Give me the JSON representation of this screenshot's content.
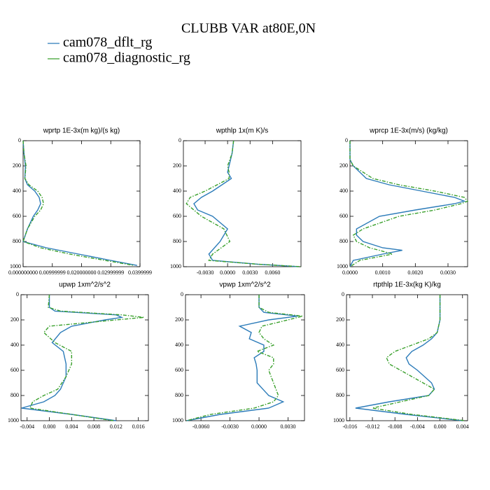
{
  "title": "CLUBB VAR at80E,0N",
  "legend": [
    {
      "name": "cam078_dflt_rg",
      "color": "#2b7bb9"
    },
    {
      "name": "cam078_diagnostic_rg",
      "color": "#3aa02c"
    }
  ],
  "chart_data": [
    {
      "type": "line",
      "title": "wprtp  1E-3x(m kg)/(s kg)",
      "y": [
        0,
        100,
        200,
        300,
        350,
        400,
        450,
        500,
        550,
        600,
        700,
        800,
        850,
        900,
        950,
        990
      ],
      "series": [
        {
          "color": "#2b7bb9",
          "dash": "solid",
          "values": [
            0,
            0.0003,
            0.0008,
            0.0006,
            0.0015,
            0.004,
            0.0055,
            0.006,
            0.005,
            0.0035,
            0.0015,
            0,
            0.008,
            0.019,
            0.03,
            0.039
          ]
        },
        {
          "color": "#3aa02c",
          "dash": "dash-dot",
          "values": [
            0,
            0.0003,
            0.001,
            0.0006,
            0.002,
            0.005,
            0.0065,
            0.007,
            0.006,
            0.004,
            0.0015,
            0,
            0.006,
            0.016,
            0.028,
            0.038
          ]
        }
      ],
      "xlim": [
        0,
        0.04
      ],
      "xticks": [
        {
          "value": 0,
          "label": "0.000000000"
        },
        {
          "value": 0.01,
          "label": "0.00999999"
        },
        {
          "value": 0.02,
          "label": "0.020000000"
        },
        {
          "value": 0.03,
          "label": "0.02999999"
        },
        {
          "value": 0.04,
          "label": "0.0399999"
        }
      ],
      "ylim": [
        0,
        1000
      ],
      "yticks": [
        0,
        200,
        400,
        600,
        800,
        1000
      ],
      "y_inverted": true
    },
    {
      "type": "line",
      "title": "wpthlp  1x(m K)/s",
      "y": [
        0,
        100,
        200,
        250,
        300,
        400,
        450,
        500,
        550,
        600,
        700,
        800,
        900,
        950,
        980,
        1000
      ],
      "series": [
        {
          "color": "#2b7bb9",
          "dash": "solid",
          "values": [
            0.0008,
            0.0006,
            0.0002,
            0.0,
            0.0005,
            -0.002,
            -0.0035,
            -0.0045,
            -0.004,
            -0.002,
            0.0,
            -0.001,
            -0.0025,
            -0.002,
            0.004,
            0.0095
          ]
        },
        {
          "color": "#3aa02c",
          "dash": "dash-dot",
          "values": [
            0.0008,
            0.0006,
            0.0,
            0.0002,
            0.0002,
            -0.003,
            -0.005,
            -0.0055,
            -0.0045,
            -0.0035,
            -0.0005,
            0.0003,
            -0.002,
            -0.0025,
            0.004,
            0.0098
          ]
        }
      ],
      "xlim": [
        -0.0059,
        0.0098
      ],
      "xticks": [
        {
          "value": -0.003,
          "label": "-0.0030"
        },
        {
          "value": 0,
          "label": "0.0000"
        },
        {
          "value": 0.003,
          "label": "0.0030"
        },
        {
          "value": 0.006,
          "label": "0.0060"
        }
      ],
      "ylim": [
        0,
        1000
      ],
      "yticks": [
        0,
        200,
        400,
        600,
        800,
        1000
      ],
      "y_inverted": true
    },
    {
      "type": "line",
      "title": "wprcp  1E-3x(m/s) (kg/kg)",
      "y": [
        0,
        150,
        200,
        300,
        350,
        400,
        450,
        480,
        500,
        550,
        600,
        700,
        750,
        800,
        850,
        870,
        900,
        950,
        1000
      ],
      "series": [
        {
          "color": "#2b7bb9",
          "dash": "solid",
          "values": [
            0,
            0,
            0.0001,
            0.0005,
            0.0012,
            0.0022,
            0.0032,
            0.0035,
            0.0032,
            0.002,
            0.0009,
            0.0002,
            0.0002,
            0.0004,
            0.001,
            0.0016,
            0.001,
            0.0001,
            0
          ]
        },
        {
          "color": "#3aa02c",
          "dash": "dash-dot",
          "values": [
            0,
            0,
            0.0001,
            0.0007,
            0.0015,
            0.0026,
            0.0035,
            0.0036,
            0.0034,
            0.0026,
            0.0015,
            0.0004,
            0.0001,
            0.0002,
            0.0006,
            0.0009,
            0.0013,
            0.0003,
            0
          ]
        }
      ],
      "xlim": [
        0,
        0.0036
      ],
      "xticks": [
        {
          "value": 0,
          "label": "0.0000"
        },
        {
          "value": 0.001,
          "label": "0.0010"
        },
        {
          "value": 0.002,
          "label": "0.0020"
        },
        {
          "value": 0.003,
          "label": "0.0030"
        }
      ],
      "ylim": [
        0,
        1000
      ],
      "yticks": [
        0,
        200,
        400,
        600,
        800,
        1000
      ],
      "y_inverted": true
    },
    {
      "type": "line",
      "title": "upwp  1xm^2/s^2",
      "y": [
        0,
        100,
        130,
        160,
        180,
        200,
        250,
        300,
        380,
        450,
        550,
        650,
        750,
        800,
        850,
        900,
        950,
        1000
      ],
      "series": [
        {
          "color": "#2b7bb9",
          "dash": "solid",
          "values": [
            0,
            0,
            0.001,
            0.012,
            0.013,
            0.01,
            0.004,
            0.002,
            0.0005,
            0.0025,
            0.003,
            0.003,
            0.002,
            0.001,
            -0.001,
            -0.005,
            0.004,
            0.012
          ]
        },
        {
          "color": "#3aa02c",
          "dash": "dash-dot",
          "values": [
            0,
            -0.0002,
            0.002,
            0.013,
            0.017,
            0.012,
            0.0,
            -0.001,
            0.001,
            0.004,
            0.004,
            0.003,
            0.0015,
            -0.001,
            -0.003,
            -0.0035,
            0.004,
            0.0115
          ]
        }
      ],
      "xlim": [
        -0.0051,
        0.0178
      ],
      "xticks": [
        {
          "value": -0.004,
          "label": "-0.004"
        },
        {
          "value": 0,
          "label": "0.000"
        },
        {
          "value": 0.004,
          "label": "0.004"
        },
        {
          "value": 0.008,
          "label": "0.008"
        },
        {
          "value": 0.012,
          "label": "0.012"
        },
        {
          "value": 0.016,
          "label": "0.016"
        }
      ],
      "ylim": [
        0,
        1000
      ],
      "yticks": [
        0,
        200,
        400,
        600,
        800,
        1000
      ],
      "y_inverted": true
    },
    {
      "type": "line",
      "title": "vpwp  1xm^2/s^2",
      "y": [
        0,
        100,
        140,
        170,
        200,
        250,
        300,
        350,
        400,
        450,
        500,
        550,
        600,
        700,
        800,
        850,
        900,
        950,
        1000
      ],
      "series": [
        {
          "color": "#2b7bb9",
          "dash": "solid",
          "values": [
            0,
            0,
            0.0005,
            0.004,
            0.001,
            -0.002,
            -0.0008,
            -0.001,
            0.0005,
            0.0005,
            -0.0005,
            -0.0003,
            -0.0002,
            -0.0002,
            0.001,
            0.0025,
            0.001,
            -0.004,
            -0.0075
          ]
        },
        {
          "color": "#3aa02c",
          "dash": "dash-dot",
          "values": [
            0,
            0,
            0.001,
            0.0045,
            0.003,
            0.0003,
            0.0,
            0.0005,
            0.0015,
            -0.0002,
            0.0015,
            0.0015,
            0.001,
            0.0015,
            0.002,
            0.0015,
            -0.0005,
            -0.005,
            -0.0075
          ]
        }
      ],
      "xlim": [
        -0.0076,
        0.0047
      ],
      "xticks": [
        {
          "value": -0.006,
          "label": "-0.0060"
        },
        {
          "value": -0.003,
          "label": "-0.0030"
        },
        {
          "value": 0,
          "label": "0.0000"
        },
        {
          "value": 0.003,
          "label": "0.0030"
        }
      ],
      "ylim": [
        0,
        1000
      ],
      "yticks": [
        0,
        200,
        400,
        600,
        800,
        1000
      ],
      "y_inverted": true
    },
    {
      "type": "line",
      "title": "rtpthlp  1E-3x(kg K)/kg",
      "y": [
        0,
        200,
        300,
        350,
        400,
        450,
        500,
        550,
        600,
        700,
        750,
        800,
        850,
        900,
        950,
        1000
      ],
      "series": [
        {
          "color": "#2b7bb9",
          "dash": "solid",
          "values": [
            0,
            0,
            -0.0005,
            -0.0015,
            -0.003,
            -0.005,
            -0.006,
            -0.0055,
            -0.004,
            -0.0015,
            -0.001,
            -0.002,
            -0.009,
            -0.015,
            -0.006,
            0.004
          ]
        },
        {
          "color": "#3aa02c",
          "dash": "dash-dot",
          "values": [
            0,
            0,
            -0.0005,
            -0.002,
            -0.005,
            -0.008,
            -0.0095,
            -0.009,
            -0.007,
            -0.003,
            -0.001,
            -0.002,
            -0.007,
            -0.012,
            -0.005,
            0.0045
          ]
        }
      ],
      "xlim": [
        -0.0166,
        0.0049
      ],
      "xticks": [
        {
          "value": -0.016,
          "label": "-0.016"
        },
        {
          "value": -0.012,
          "label": "-0.012"
        },
        {
          "value": -0.008,
          "label": "-0.008"
        },
        {
          "value": -0.004,
          "label": "-0.004"
        },
        {
          "value": 0,
          "label": "0.000"
        },
        {
          "value": 0.004,
          "label": "0.004"
        }
      ],
      "ylim": [
        0,
        1000
      ],
      "yticks": [
        0,
        200,
        400,
        600,
        800,
        1000
      ],
      "y_inverted": true
    }
  ]
}
